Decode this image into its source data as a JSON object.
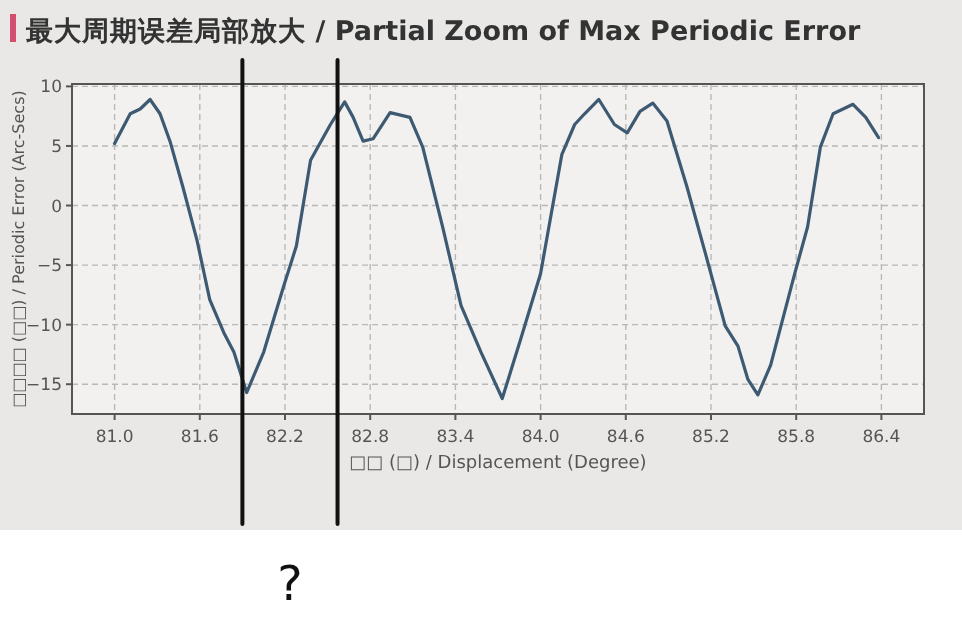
{
  "chart_data": {
    "type": "line",
    "title": "最大周期误差局部放大 / Partial Zoom of Max Periodic Error",
    "xlabel": "□□ (□) / Displacement (Degree)",
    "ylabel": "□□□□ (□□) / Periodic Error (Arc-Secs)",
    "series": [
      {
        "color": "#3e5a72",
        "x": [
          81.0,
          81.11,
          81.18,
          81.25,
          81.32,
          81.39,
          81.48,
          81.58,
          81.67,
          81.77,
          81.84,
          81.93,
          82.05,
          82.19,
          82.28,
          82.38,
          82.52,
          82.62,
          82.68,
          82.75,
          82.82,
          82.94,
          83.08,
          83.17,
          83.31,
          83.44,
          83.58,
          83.73,
          83.86,
          84.0,
          84.15,
          84.24,
          84.31,
          84.41,
          84.52,
          84.61,
          84.7,
          84.79,
          84.89,
          85.03,
          85.16,
          85.3,
          85.39,
          85.46,
          85.53,
          85.62,
          85.79,
          85.88,
          85.97,
          86.06,
          86.2,
          86.29,
          86.38
        ],
        "values": [
          5.2,
          7.7,
          8.1,
          8.9,
          7.7,
          5.4,
          1.6,
          -2.9,
          -7.9,
          -10.7,
          -12.3,
          -15.7,
          -12.3,
          -6.8,
          -3.4,
          3.8,
          6.8,
          8.7,
          7.4,
          5.4,
          5.6,
          7.8,
          7.4,
          4.9,
          -1.8,
          -8.4,
          -12.3,
          -16.2,
          -11.2,
          -5.7,
          4.3,
          6.8,
          7.7,
          8.9,
          6.8,
          6.1,
          7.9,
          8.6,
          7.1,
          1.6,
          -4.0,
          -10.1,
          -11.8,
          -14.6,
          -15.9,
          -13.4,
          -5.7,
          -1.8,
          4.9,
          7.7,
          8.5,
          7.4,
          5.7
        ]
      }
    ],
    "xlim": [
      80.7,
      86.7
    ],
    "ylim": [
      -17.5,
      10.2
    ],
    "xticks": [
      {
        "value": 81,
        "label": "81.0"
      },
      {
        "value": 81.6,
        "label": "81.6"
      },
      {
        "value": 82.2,
        "label": "82.2"
      },
      {
        "value": 82.8,
        "label": "82.8"
      },
      {
        "value": 83.4,
        "label": "83.4"
      },
      {
        "value": 84,
        "label": "84.0"
      },
      {
        "value": 84.6,
        "label": "84.6"
      },
      {
        "value": 85.2,
        "label": "85.2"
      },
      {
        "value": 85.8,
        "label": "85.8"
      },
      {
        "value": 86.4,
        "label": "86.4"
      }
    ],
    "yticks": [
      -15,
      -10,
      -5,
      0,
      5,
      10
    ],
    "grid": true,
    "line_style": "solid",
    "marker": "none",
    "ref_lines": [
      {
        "axis": "x",
        "value": 81.9,
        "label": null,
        "color": "#111111"
      },
      {
        "axis": "x",
        "value": 82.57,
        "label": null,
        "color": "#111111"
      }
    ],
    "annotations": [
      "?"
    ]
  }
}
